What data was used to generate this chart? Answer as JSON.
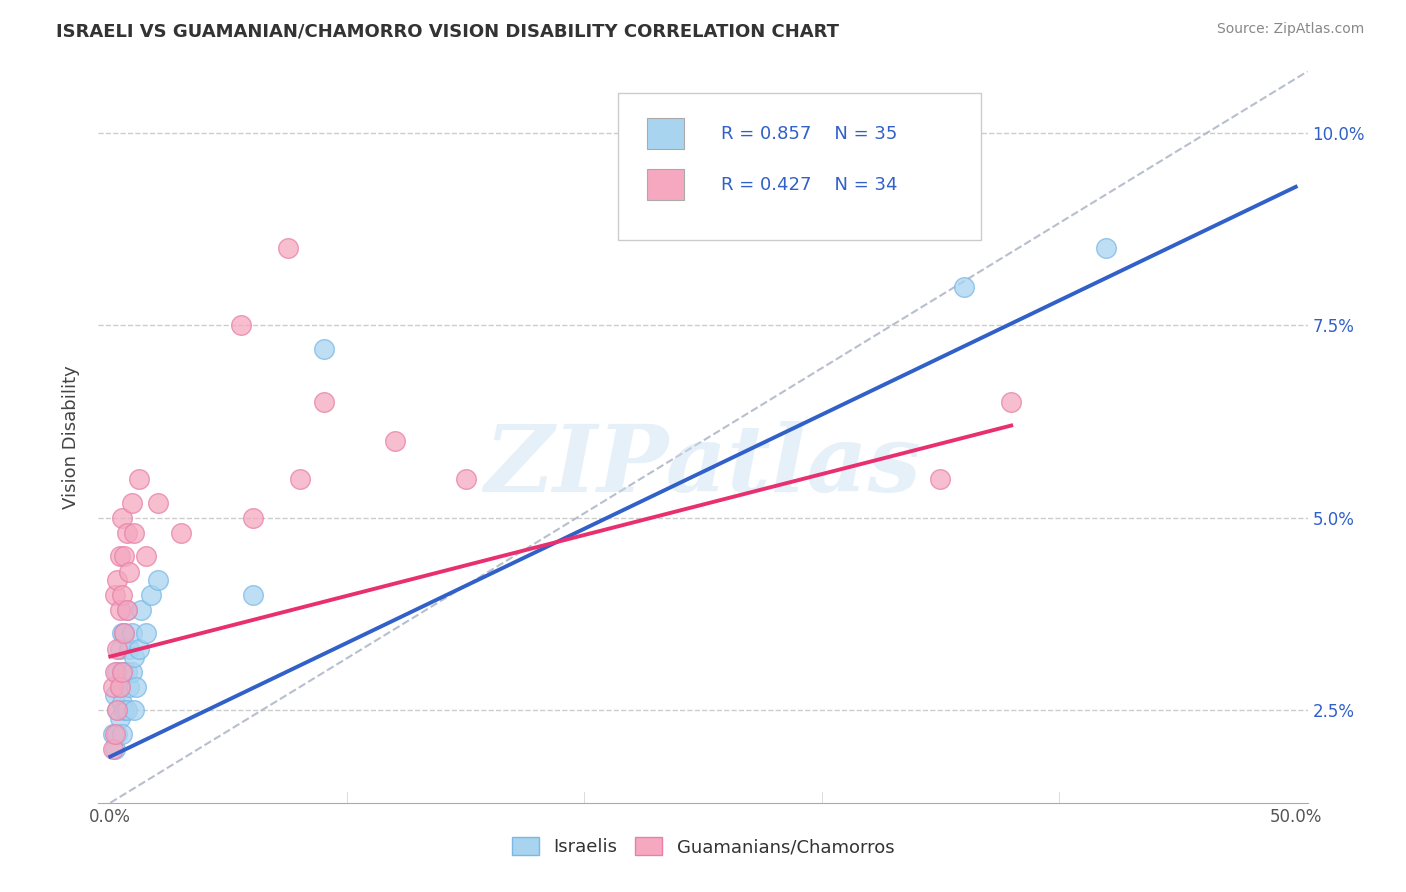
{
  "title": "ISRAELI VS GUAMANIAN/CHAMORRO VISION DISABILITY CORRELATION CHART",
  "source": "Source: ZipAtlas.com",
  "ylabel": "Vision Disability",
  "xlim": [
    -0.005,
    0.505
  ],
  "ylim": [
    0.013,
    0.108
  ],
  "x_ticks": [
    0.0,
    0.1,
    0.2,
    0.3,
    0.4,
    0.5
  ],
  "x_tick_labels_show": [
    "0.0%",
    "",
    "",
    "",
    "",
    "50.0%"
  ],
  "y_ticks": [
    0.025,
    0.05,
    0.075,
    0.1
  ],
  "y_tick_labels": [
    "2.5%",
    "5.0%",
    "7.5%",
    "10.0%"
  ],
  "legend1_r": "0.857",
  "legend1_n": "35",
  "legend2_r": "0.427",
  "legend2_n": "34",
  "legend_labels": [
    "Israelis",
    "Guamanians/Chamorros"
  ],
  "israeli_color": "#a8d4f0",
  "guamanian_color": "#f5a8c0",
  "israeli_edge_color": "#7ab8e8",
  "guamanian_edge_color": "#e880a8",
  "israeli_line_color": "#3060c8",
  "guamanian_line_color": "#e83070",
  "ref_line_color": "#b0b8c8",
  "watermark": "ZIPatlas",
  "israelis_x": [
    0.001,
    0.002,
    0.002,
    0.003,
    0.003,
    0.003,
    0.004,
    0.004,
    0.004,
    0.005,
    0.005,
    0.005,
    0.005,
    0.006,
    0.006,
    0.006,
    0.007,
    0.007,
    0.007,
    0.008,
    0.008,
    0.009,
    0.009,
    0.01,
    0.01,
    0.011,
    0.012,
    0.013,
    0.015,
    0.017,
    0.02,
    0.06,
    0.09,
    0.36,
    0.42
  ],
  "israelis_y": [
    0.022,
    0.02,
    0.027,
    0.022,
    0.025,
    0.03,
    0.024,
    0.028,
    0.033,
    0.022,
    0.026,
    0.03,
    0.035,
    0.025,
    0.03,
    0.035,
    0.025,
    0.03,
    0.038,
    0.028,
    0.033,
    0.03,
    0.035,
    0.025,
    0.032,
    0.028,
    0.033,
    0.038,
    0.035,
    0.04,
    0.042,
    0.04,
    0.072,
    0.08,
    0.085
  ],
  "guamanians_x": [
    0.001,
    0.001,
    0.002,
    0.002,
    0.002,
    0.003,
    0.003,
    0.003,
    0.004,
    0.004,
    0.004,
    0.005,
    0.005,
    0.005,
    0.006,
    0.006,
    0.007,
    0.007,
    0.008,
    0.009,
    0.01,
    0.012,
    0.015,
    0.02,
    0.03,
    0.06,
    0.08,
    0.09,
    0.12,
    0.15,
    0.055,
    0.075,
    0.35,
    0.38
  ],
  "guamanians_y": [
    0.02,
    0.028,
    0.022,
    0.03,
    0.04,
    0.025,
    0.033,
    0.042,
    0.028,
    0.038,
    0.045,
    0.03,
    0.04,
    0.05,
    0.035,
    0.045,
    0.038,
    0.048,
    0.043,
    0.052,
    0.048,
    0.055,
    0.045,
    0.052,
    0.048,
    0.05,
    0.055,
    0.065,
    0.06,
    0.055,
    0.075,
    0.085,
    0.055,
    0.065
  ],
  "israeli_line_x": [
    0.0,
    0.5
  ],
  "israeli_line_y": [
    0.019,
    0.093
  ],
  "guamanian_line_x": [
    0.0,
    0.38
  ],
  "guamanian_line_y": [
    0.032,
    0.062
  ],
  "ref_line_x": [
    0.0,
    0.505
  ],
  "ref_line_y": [
    0.013,
    0.108
  ]
}
